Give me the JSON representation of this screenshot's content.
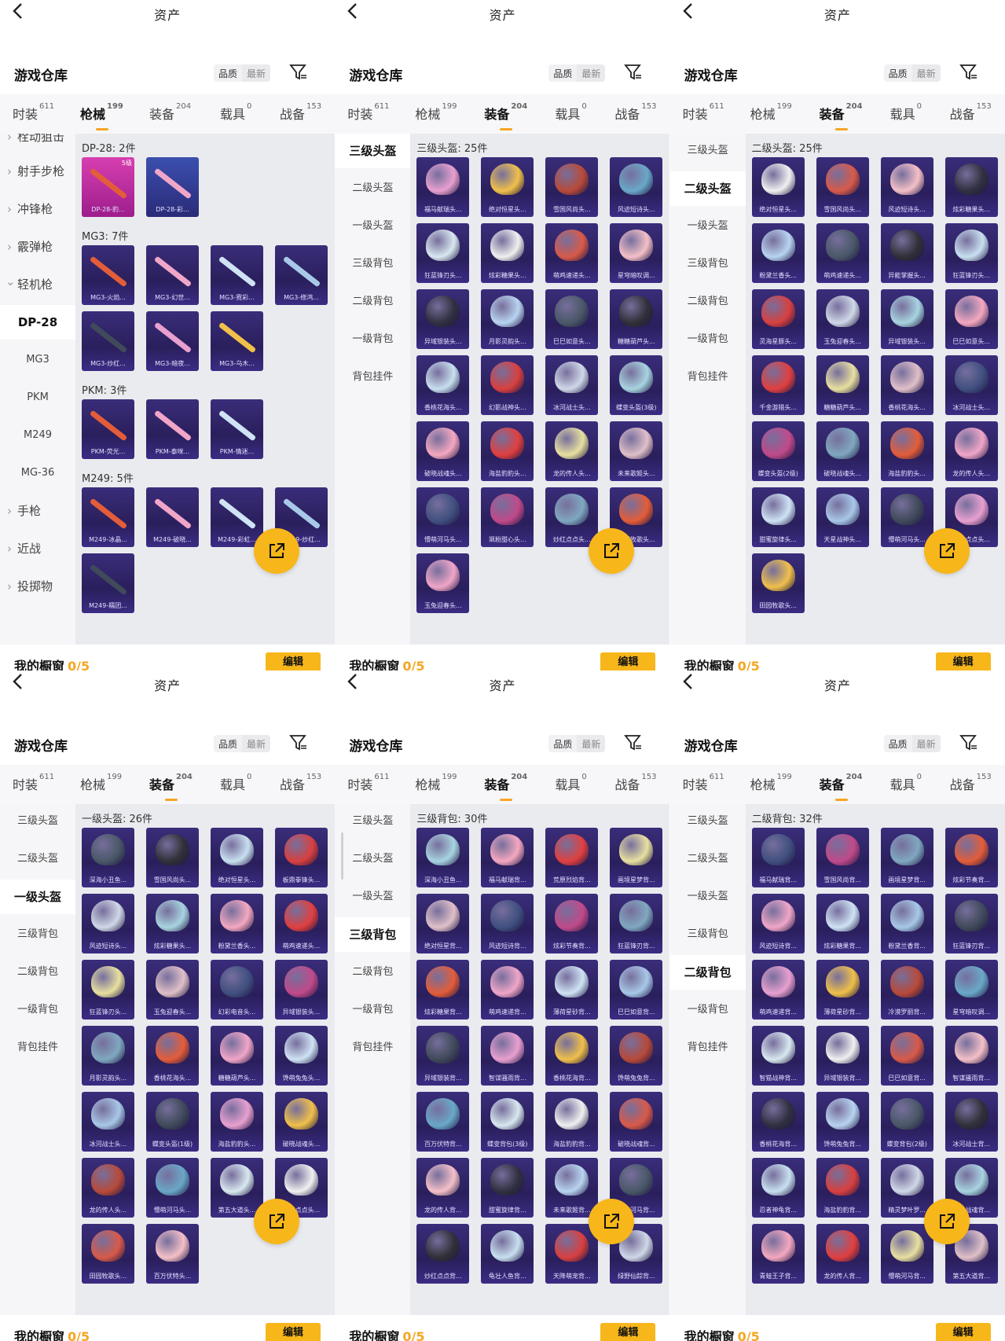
{
  "common": {
    "page_title": "资产",
    "header_title": "游戏仓库",
    "sort_quality": "品质",
    "sort_newest": "最新",
    "bottom_title": "我的橱窗",
    "bottom_count": "0/5",
    "edit_label": "编辑",
    "tabs": [
      {
        "label": "时装",
        "count": "611"
      },
      {
        "label": "枪械",
        "count": "199"
      },
      {
        "label": "装备",
        "count": "204"
      },
      {
        "label": "载具",
        "count": "0"
      },
      {
        "label": "战备",
        "count": "153"
      }
    ],
    "colors": {
      "accent": "#f5a623",
      "card_bg": "#2a1f5c",
      "fab": "#f7b61a"
    },
    "icons": {
      "back": "back-arrow-icon",
      "filter": "filter-icon",
      "share": "share-icon"
    }
  },
  "panels": [
    {
      "active_tab": 1,
      "sidebar": [
        {
          "label": "栓动狙击",
          "type": "cat"
        },
        {
          "label": "射手步枪",
          "type": "cat"
        },
        {
          "label": "冲锋枪",
          "type": "cat"
        },
        {
          "label": "霰弹枪",
          "type": "cat"
        },
        {
          "label": "轻机枪",
          "type": "cat-open"
        },
        {
          "label": "DP-28",
          "type": "active"
        },
        {
          "label": "MG3",
          "type": "sub"
        },
        {
          "label": "PKM",
          "type": "sub"
        },
        {
          "label": "M249",
          "type": "sub"
        },
        {
          "label": "MG-36",
          "type": "sub"
        },
        {
          "label": "手枪",
          "type": "cat"
        },
        {
          "label": "近战",
          "type": "cat"
        },
        {
          "label": "投掷物",
          "type": "cat"
        }
      ],
      "sections": [
        {
          "title": "DP-28: 2件",
          "items": [
            {
              "name": "DP-28-豹...",
              "badge": "5级",
              "style": "pink"
            },
            {
              "name": "DP-28-彩...",
              "style": "blue"
            }
          ]
        },
        {
          "title": "MG3: 7件",
          "items": [
            {
              "name": "MG3-火焰..."
            },
            {
              "name": "MG3-幻世..."
            },
            {
              "name": "MG3-霓彩..."
            },
            {
              "name": "MG3-修鸿..."
            },
            {
              "name": "MG3-炒红..."
            },
            {
              "name": "MG3-暗夜..."
            },
            {
              "name": "MG3-乌木..."
            }
          ]
        },
        {
          "title": "PKM: 3件",
          "items": [
            {
              "name": "PKM-荧光..."
            },
            {
              "name": "PKM-泰咪..."
            },
            {
              "name": "PKM-情迷..."
            }
          ]
        },
        {
          "title": "M249: 5件",
          "items": [
            {
              "name": "M249-冰晶..."
            },
            {
              "name": "M249-破晓..."
            },
            {
              "name": "M249-彩虹..."
            },
            {
              "name": "M249-炒红..."
            },
            {
              "name": "M249-糯团..."
            }
          ]
        }
      ]
    },
    {
      "active_tab": 2,
      "sidebar": [
        {
          "label": "三级头盔",
          "type": "active"
        },
        {
          "label": "二级头盔",
          "type": "sub"
        },
        {
          "label": "一级头盔",
          "type": "sub"
        },
        {
          "label": "三级背包",
          "type": "sub"
        },
        {
          "label": "二级背包",
          "type": "sub"
        },
        {
          "label": "一级背包",
          "type": "sub"
        },
        {
          "label": "背包挂件",
          "type": "sub"
        }
      ],
      "sections": [
        {
          "title": "三级头盔: 25件",
          "items": [
            {
              "name": "福马献瑞头..."
            },
            {
              "name": "绝对恒星头..."
            },
            {
              "name": "雪国风尚头..."
            },
            {
              "name": "风迹短诗头..."
            },
            {
              "name": "狂蓝锋刃头..."
            },
            {
              "name": "炫彩糖果头..."
            },
            {
              "name": "萌鸡速递头..."
            },
            {
              "name": "星穹暗叹调..."
            },
            {
              "name": "异域银装头..."
            },
            {
              "name": "月影灵韵头..."
            },
            {
              "name": "巳巳如意头..."
            },
            {
              "name": "糖糖葫芦头..."
            },
            {
              "name": "香桃花海头..."
            },
            {
              "name": "幻影战神头..."
            },
            {
              "name": "冰河战士头..."
            },
            {
              "name": "蝶变头盔(3级)"
            },
            {
              "name": "破晓战魂头..."
            },
            {
              "name": "海盐豹豹头..."
            },
            {
              "name": "龙的传人头..."
            },
            {
              "name": "未来歌姬头..."
            },
            {
              "name": "懵萌河马头..."
            },
            {
              "name": "飒粉甜心头..."
            },
            {
              "name": "炒红点点头..."
            },
            {
              "name": "田园牧歌头..."
            },
            {
              "name": "玉兔迎春头..."
            }
          ]
        }
      ]
    },
    {
      "active_tab": 2,
      "sidebar": [
        {
          "label": "三级头盔",
          "type": "sub"
        },
        {
          "label": "二级头盔",
          "type": "active"
        },
        {
          "label": "一级头盔",
          "type": "sub"
        },
        {
          "label": "三级背包",
          "type": "sub"
        },
        {
          "label": "二级背包",
          "type": "sub"
        },
        {
          "label": "一级背包",
          "type": "sub"
        },
        {
          "label": "背包挂件",
          "type": "sub"
        }
      ],
      "sections": [
        {
          "title": "二级头盔: 25件",
          "items": [
            {
              "name": "绝对恒星头..."
            },
            {
              "name": "雪国风尚头..."
            },
            {
              "name": "风迹短诗头..."
            },
            {
              "name": "炫彩糖果头..."
            },
            {
              "name": "粉黛兰香头..."
            },
            {
              "name": "萌鸡速递头..."
            },
            {
              "name": "异能掌握头..."
            },
            {
              "name": "狂蓝锋刃头..."
            },
            {
              "name": "灵海星豚头..."
            },
            {
              "name": "玉兔迎春头..."
            },
            {
              "name": "异域银装头..."
            },
            {
              "name": "巳巳如意头..."
            },
            {
              "name": "千金游猎头..."
            },
            {
              "name": "糖糖葫芦头..."
            },
            {
              "name": "香桃花海头..."
            },
            {
              "name": "冰河战士头..."
            },
            {
              "name": "蝶变头盔(2级)"
            },
            {
              "name": "破晓战魂头..."
            },
            {
              "name": "海盐豹豹头..."
            },
            {
              "name": "龙的传人头..."
            },
            {
              "name": "甜蜜旋律头..."
            },
            {
              "name": "天星战神头..."
            },
            {
              "name": "懵萌河马头..."
            },
            {
              "name": "炒红点点头..."
            },
            {
              "name": "田园牧歌头..."
            }
          ]
        }
      ]
    },
    {
      "active_tab": 2,
      "sidebar": [
        {
          "label": "三级头盔",
          "type": "sub"
        },
        {
          "label": "二级头盔",
          "type": "sub"
        },
        {
          "label": "一级头盔",
          "type": "active"
        },
        {
          "label": "三级背包",
          "type": "sub"
        },
        {
          "label": "二级背包",
          "type": "sub"
        },
        {
          "label": "一级背包",
          "type": "sub"
        },
        {
          "label": "背包挂件",
          "type": "sub"
        }
      ],
      "sections": [
        {
          "title": "一级头盔: 26件",
          "items": [
            {
              "name": "深海小丑鱼..."
            },
            {
              "name": "雪国风尚头..."
            },
            {
              "name": "绝对恒星头..."
            },
            {
              "name": "板鼎拳锋头..."
            },
            {
              "name": "风迹短诗头..."
            },
            {
              "name": "炫彩糖果头..."
            },
            {
              "name": "粉黛兰香头..."
            },
            {
              "name": "萌鸡速递头..."
            },
            {
              "name": "狂蓝锋刃头..."
            },
            {
              "name": "玉兔迎春头..."
            },
            {
              "name": "幻彩电音头..."
            },
            {
              "name": "异域银装头..."
            },
            {
              "name": "月影灵韵头..."
            },
            {
              "name": "香桃花海头..."
            },
            {
              "name": "糖糖葫芦头..."
            },
            {
              "name": "馋萌兔兔头..."
            },
            {
              "name": "冰河战士头..."
            },
            {
              "name": "蝶变头盔(1级)"
            },
            {
              "name": "海盐豹豹头..."
            },
            {
              "name": "破晓战魂头..."
            },
            {
              "name": "龙的传人头..."
            },
            {
              "name": "懵萌河马头..."
            },
            {
              "name": "第五大道头..."
            },
            {
              "name": "炒红点点头..."
            },
            {
              "name": "田园牧歌头..."
            },
            {
              "name": "百万伏特头..."
            }
          ]
        }
      ]
    },
    {
      "active_tab": 2,
      "sidebar": [
        {
          "label": "三级头盔",
          "type": "sub"
        },
        {
          "label": "二级头盔",
          "type": "sub"
        },
        {
          "label": "一级头盔",
          "type": "sub"
        },
        {
          "label": "三级背包",
          "type": "active"
        },
        {
          "label": "二级背包",
          "type": "sub"
        },
        {
          "label": "一级背包",
          "type": "sub"
        },
        {
          "label": "背包挂件",
          "type": "sub"
        }
      ],
      "sections": [
        {
          "title": "三级背包: 30件",
          "items": [
            {
              "name": "深海小丑鱼..."
            },
            {
              "name": "福马献瑞背..."
            },
            {
              "name": "荒原烈焰背..."
            },
            {
              "name": "画境星梦背..."
            },
            {
              "name": "绝对恒星背..."
            },
            {
              "name": "风迹短诗背..."
            },
            {
              "name": "炫彩节奏背..."
            },
            {
              "name": "狂蓝锋刃背..."
            },
            {
              "name": "炫彩糖果背..."
            },
            {
              "name": "萌鸡速递背..."
            },
            {
              "name": "薄荷星砂背..."
            },
            {
              "name": "巳巳如意背..."
            },
            {
              "name": "异域银装背..."
            },
            {
              "name": "智谋骚雨背..."
            },
            {
              "name": "香桃花海背..."
            },
            {
              "name": "馋萌兔兔背..."
            },
            {
              "name": "百万伏特背..."
            },
            {
              "name": "蝶变背包(3级)"
            },
            {
              "name": "海盐豹豹背..."
            },
            {
              "name": "破晓战魂背..."
            },
            {
              "name": "龙的传人背..."
            },
            {
              "name": "甜蜜旋律背..."
            },
            {
              "name": "未来歌姬背..."
            },
            {
              "name": "懵萌河马背..."
            },
            {
              "name": "炒红点点背..."
            },
            {
              "name": "龟壮人鱼背..."
            },
            {
              "name": "天降萌宠背..."
            },
            {
              "name": "绿野仙踪背..."
            }
          ]
        }
      ]
    },
    {
      "active_tab": 2,
      "sidebar": [
        {
          "label": "三级头盔",
          "type": "sub"
        },
        {
          "label": "二级头盔",
          "type": "sub"
        },
        {
          "label": "一级头盔",
          "type": "sub"
        },
        {
          "label": "三级背包",
          "type": "sub"
        },
        {
          "label": "二级背包",
          "type": "active"
        },
        {
          "label": "一级背包",
          "type": "sub"
        },
        {
          "label": "背包挂件",
          "type": "sub"
        }
      ],
      "sections": [
        {
          "title": "二级背包: 32件",
          "items": [
            {
              "name": "福马献瑞背..."
            },
            {
              "name": "雪国风尚背..."
            },
            {
              "name": "画境星梦背..."
            },
            {
              "name": "炫彩节奏背..."
            },
            {
              "name": "风迹短诗背..."
            },
            {
              "name": "炫彩糖果背..."
            },
            {
              "name": "粉黛兰香背..."
            },
            {
              "name": "狂蓝锋刃背..."
            },
            {
              "name": "萌鸡速递背..."
            },
            {
              "name": "薄荷星砂背..."
            },
            {
              "name": "冷漠罗丽背..."
            },
            {
              "name": "星穹暗叹调..."
            },
            {
              "name": "智猫战神背..."
            },
            {
              "name": "异域银装背..."
            },
            {
              "name": "巳巳如意背..."
            },
            {
              "name": "智谋骚雨背..."
            },
            {
              "name": "香桃花海背..."
            },
            {
              "name": "馋萌兔兔背..."
            },
            {
              "name": "蝶变背包(2级)"
            },
            {
              "name": "冰河战士背..."
            },
            {
              "name": "忍者神龟背..."
            },
            {
              "name": "海盐豹豹背..."
            },
            {
              "name": "精灵梦叶罗..."
            },
            {
              "name": "破晓战魂背..."
            },
            {
              "name": "青蛙王子背..."
            },
            {
              "name": "龙的传人背..."
            },
            {
              "name": "懵萌河马背..."
            },
            {
              "name": "第五大道背..."
            }
          ]
        }
      ]
    }
  ]
}
